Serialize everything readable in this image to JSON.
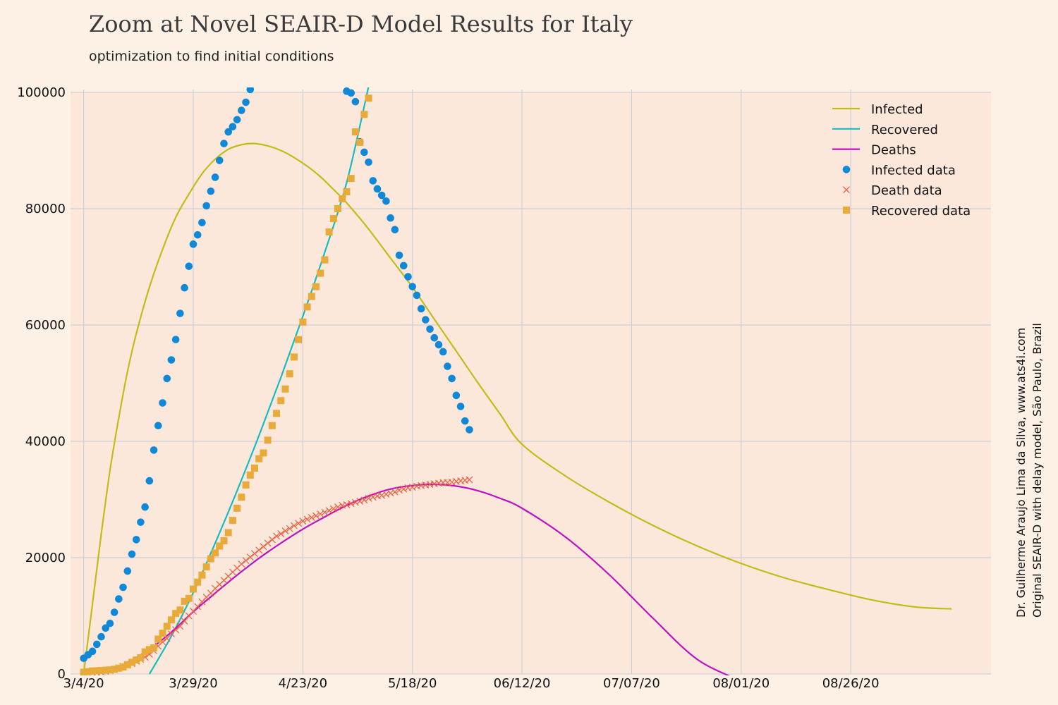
{
  "chart_data": {
    "type": "line",
    "title": "Zoom at Novel SEAIR-D Model Results for Italy",
    "subtitle": "optimization to find initial conditions",
    "credit_line1": "Dr. Guilherme Araujo Lima da Silva, www.ats4i.com",
    "credit_line2": "Original SEAIR-D with delay model, São Paulo, Brazil",
    "xlabel": "",
    "ylabel": "",
    "x_axis": {
      "unit": "days since 3/4/20",
      "range": [
        -3,
        207
      ],
      "tick_values": [
        0,
        25,
        50,
        75,
        100,
        125,
        150,
        175
      ],
      "tick_labels": [
        "3/4/20",
        "3/29/20",
        "4/23/20",
        "5/18/20",
        "06/12/20",
        "07/07/20",
        "08/01/20",
        "08/26/20"
      ]
    },
    "y_axis": {
      "range": [
        0,
        100000
      ],
      "tick_values": [
        0,
        20000,
        40000,
        60000,
        80000,
        100000
      ],
      "tick_labels": [
        "0",
        "20000",
        "40000",
        "60000",
        "80000",
        "100000"
      ]
    },
    "grid": true,
    "legend_position": "top-right",
    "colors": {
      "background": "#fdf1e6",
      "plot_background": "#fbe8da",
      "grid": "#cfcfd4",
      "infected": "#c2bc18",
      "recovered": "#16bcbf",
      "deaths": "#c010c0",
      "infected_data": "#1088d8",
      "death_data": "#f05a3c",
      "recovered_data": "#e8aa38"
    },
    "series": [
      {
        "name": "Infected",
        "kind": "line",
        "color": "#c2bc18",
        "x": [
          0,
          2,
          4,
          6,
          8,
          10,
          12,
          15,
          18,
          21,
          24,
          27,
          30,
          33,
          36,
          39,
          42,
          45,
          48,
          51,
          54,
          57,
          60,
          65,
          70,
          75,
          80,
          85,
          90,
          95,
          100,
          110,
          120,
          130,
          140,
          150,
          160,
          170,
          180,
          190,
          198
        ],
        "y": [
          0,
          12000,
          24000,
          35000,
          44000,
          52000,
          58500,
          66500,
          73000,
          78500,
          82500,
          86000,
          88500,
          90200,
          91000,
          91200,
          90800,
          90000,
          88800,
          87300,
          85500,
          83300,
          81000,
          76500,
          71500,
          66500,
          61000,
          55500,
          50000,
          44700,
          39500,
          34000,
          29500,
          25500,
          22000,
          19000,
          16500,
          14500,
          12700,
          11500,
          11200
        ]
      },
      {
        "name": "Recovered",
        "kind": "line",
        "color": "#16bcbf",
        "x": [
          15,
          20,
          25,
          30,
          35,
          40,
          45,
          50,
          55,
          60,
          65
        ],
        "y": [
          0,
          6500,
          14000,
          22500,
          31500,
          41000,
          51000,
          61500,
          72500,
          84500,
          101000
        ]
      },
      {
        "name": "Deaths",
        "kind": "line",
        "color": "#c010c0",
        "x": [
          10,
          15,
          20,
          25,
          30,
          35,
          40,
          45,
          50,
          55,
          60,
          65,
          70,
          75,
          80,
          85,
          90,
          95,
          100,
          110,
          120,
          130,
          140,
          150
        ],
        "y": [
          2000,
          4200,
          7200,
          10700,
          13900,
          17000,
          19900,
          22500,
          24900,
          27000,
          29000,
          30600,
          31800,
          32400,
          32600,
          32300,
          31500,
          30200,
          28500,
          23500,
          17000,
          9500,
          2500,
          -1200
        ]
      },
      {
        "name": "Infected data",
        "kind": "scatter",
        "marker": "circle",
        "color": "#1088d8",
        "x": [
          0,
          1,
          2,
          3,
          4,
          5,
          6,
          7,
          8,
          9,
          10,
          11,
          12,
          13,
          14,
          15,
          16,
          17,
          18,
          19,
          20,
          21,
          22,
          23,
          24,
          25,
          26,
          27,
          28,
          29,
          30,
          31,
          32,
          33,
          34,
          35,
          36,
          37,
          38,
          60,
          61,
          62,
          63,
          64,
          65,
          66,
          67,
          68,
          69,
          70,
          71,
          72,
          73,
          74,
          75,
          76,
          77,
          78,
          79,
          80,
          81,
          82,
          83,
          84,
          85,
          86,
          87,
          88
        ],
        "y": [
          2700,
          3300,
          3900,
          5100,
          6400,
          7900,
          8700,
          10600,
          12900,
          14900,
          17700,
          20600,
          23100,
          26100,
          28700,
          33200,
          38500,
          42700,
          46600,
          50800,
          54000,
          57500,
          62000,
          66400,
          70100,
          73900,
          75500,
          77600,
          80500,
          83000,
          85400,
          88300,
          91200,
          93200,
          94100,
          95300,
          96900,
          98300,
          100500,
          100200,
          99900,
          98400,
          91500,
          89700,
          88000,
          84800,
          83400,
          82300,
          81300,
          78400,
          76400,
          72000,
          70200,
          68300,
          66600,
          65100,
          62800,
          60900,
          59300,
          57800,
          56600,
          55400,
          52900,
          50800,
          47900,
          46000,
          43500,
          42000
        ]
      },
      {
        "name": "Death data",
        "kind": "scatter",
        "marker": "x",
        "color": "#f05a3c",
        "x": [
          0,
          1,
          2,
          3,
          4,
          5,
          6,
          7,
          8,
          9,
          10,
          11,
          12,
          13,
          14,
          15,
          16,
          17,
          18,
          19,
          20,
          21,
          22,
          23,
          24,
          25,
          26,
          27,
          28,
          29,
          30,
          31,
          32,
          33,
          34,
          35,
          36,
          37,
          38,
          39,
          40,
          41,
          42,
          43,
          44,
          45,
          46,
          47,
          48,
          49,
          50,
          51,
          52,
          53,
          54,
          55,
          56,
          57,
          58,
          59,
          60,
          61,
          62,
          63,
          64,
          65,
          66,
          67,
          68,
          69,
          70,
          71,
          72,
          73,
          74,
          75,
          76,
          77,
          78,
          79,
          80,
          81,
          82,
          83,
          84,
          85,
          86,
          87,
          88
        ],
        "y": [
          100,
          150,
          200,
          250,
          350,
          450,
          600,
          800,
          1000,
          1300,
          1500,
          1800,
          2200,
          2500,
          2900,
          3400,
          4000,
          4800,
          5500,
          6100,
          6900,
          7600,
          8200,
          9100,
          10000,
          10800,
          11600,
          12400,
          13200,
          13900,
          14700,
          15400,
          16100,
          16800,
          17500,
          18200,
          18900,
          19500,
          20100,
          20700,
          21300,
          21900,
          22500,
          23100,
          23700,
          24100,
          24600,
          25000,
          25500,
          25900,
          26300,
          26600,
          26900,
          27200,
          27500,
          27800,
          28100,
          28400,
          28700,
          29000,
          29100,
          29300,
          29500,
          29700,
          29900,
          30200,
          30400,
          30600,
          30700,
          30900,
          31100,
          31300,
          31600,
          31800,
          32000,
          32100,
          32300,
          32400,
          32500,
          32600,
          32700,
          32800,
          32900,
          32900,
          33000,
          33100,
          33200,
          33300,
          33400
        ]
      },
      {
        "name": "Recovered data",
        "kind": "scatter",
        "marker": "square",
        "color": "#e8aa38",
        "x": [
          0,
          1,
          2,
          3,
          4,
          5,
          6,
          7,
          8,
          9,
          10,
          11,
          12,
          13,
          14,
          15,
          16,
          17,
          18,
          19,
          20,
          21,
          22,
          23,
          24,
          25,
          26,
          27,
          28,
          29,
          30,
          31,
          32,
          33,
          34,
          35,
          36,
          37,
          38,
          39,
          40,
          41,
          42,
          43,
          44,
          45,
          46,
          47,
          48,
          49,
          50,
          51,
          52,
          53,
          54,
          55,
          56,
          57,
          58,
          59,
          60,
          61,
          62,
          63,
          64,
          65
        ],
        "y": [
          300,
          400,
          500,
          550,
          600,
          650,
          700,
          800,
          1000,
          1200,
          1600,
          2000,
          2400,
          2800,
          3800,
          4200,
          4500,
          6000,
          7000,
          8200,
          9300,
          10400,
          11000,
          12500,
          13000,
          14600,
          15800,
          17000,
          18400,
          19800,
          20800,
          22000,
          22900,
          24300,
          26400,
          28500,
          30400,
          32500,
          34200,
          35400,
          37000,
          38000,
          40200,
          42700,
          44800,
          47000,
          49000,
          51600,
          54500,
          57500,
          60500,
          63100,
          64900,
          66600,
          68900,
          71200,
          76000,
          78300,
          80000,
          81700,
          82900,
          85200,
          93200,
          91400,
          96200,
          99000
        ]
      }
    ]
  }
}
